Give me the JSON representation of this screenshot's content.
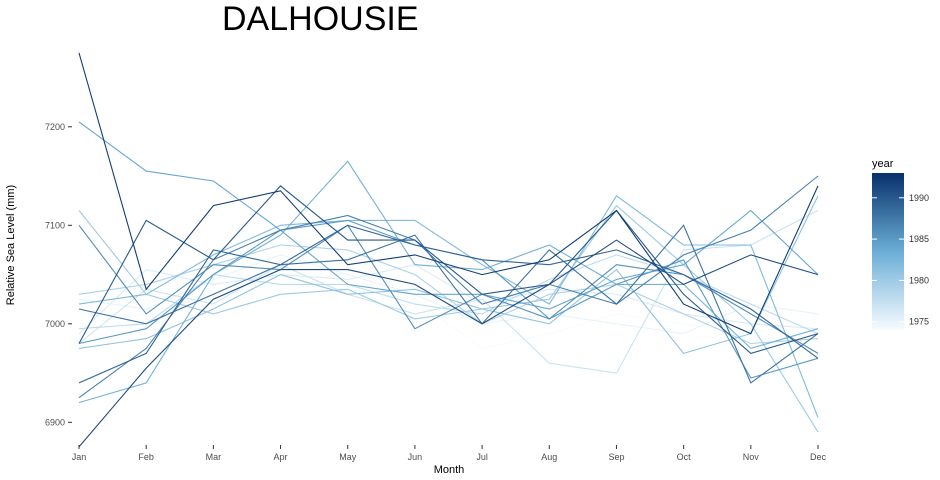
{
  "chart_data": {
    "type": "line",
    "title": "DALHOUSIE",
    "xlabel": "Month",
    "ylabel": "Relative Sea Level (mm)",
    "categories": [
      "Jan",
      "Feb",
      "Mar",
      "Apr",
      "May",
      "Jun",
      "Jul",
      "Aug",
      "Sep",
      "Oct",
      "Nov",
      "Dec"
    ],
    "ylim": [
      6880,
      7280
    ],
    "yticks": [
      6900,
      7000,
      7100,
      7200
    ],
    "grid": false,
    "legend": {
      "title": "year",
      "position": "right",
      "type": "colorbar",
      "range": [
        1974,
        1993
      ],
      "ticks": [
        1975,
        1980,
        1985,
        1990
      ],
      "color_low": "#f7fbff",
      "color_high": "#08306b"
    },
    "series": [
      {
        "year": 1974,
        "values": [
          7000,
          7010,
          7030,
          7040,
          7035,
          7025,
          6975,
          6990,
          7010,
          7000,
          6990,
          7005
        ]
      },
      {
        "year": 1975,
        "values": [
          7025,
          7015,
          7045,
          7070,
          7050,
          7030,
          7000,
          7010,
          7000,
          6990,
          7020,
          7010
        ]
      },
      {
        "year": 1976,
        "values": [
          6990,
          7055,
          7040,
          7050,
          7045,
          7060,
          7020,
          7035,
          7030,
          7010,
          7000,
          6995
        ]
      },
      {
        "year": 1977,
        "values": [
          6980,
          7035,
          7020,
          7060,
          7030,
          7010,
          7025,
          6960,
          6950,
          7075,
          7080,
          7115
        ]
      },
      {
        "year": 1978,
        "values": [
          6995,
          7000,
          7050,
          7040,
          7040,
          7020,
          7010,
          7045,
          7070,
          7050,
          7020,
          6990
        ]
      },
      {
        "year": 1979,
        "values": [
          7030,
          7040,
          7060,
          7080,
          7075,
          7050,
          7000,
          7030,
          7040,
          7010,
          6980,
          6985
        ]
      },
      {
        "year": 1980,
        "values": [
          7115,
          7030,
          7010,
          7030,
          7035,
          7005,
          7015,
          7025,
          7120,
          7060,
          7000,
          6890
        ]
      },
      {
        "year": 1981,
        "values": [
          6975,
          6985,
          7015,
          7050,
          7030,
          7035,
          7015,
          7000,
          7055,
          6970,
          6990,
          7130
        ]
      },
      {
        "year": 1982,
        "values": [
          7020,
          7030,
          7070,
          7100,
          7105,
          7105,
          7060,
          7020,
          7130,
          7080,
          7080,
          6905
        ]
      },
      {
        "year": 1983,
        "values": [
          6920,
          6940,
          7050,
          7090,
          7165,
          7060,
          7055,
          7080,
          7040,
          7040,
          6975,
          6995
        ]
      },
      {
        "year": 1984,
        "values": [
          7205,
          7155,
          7145,
          7095,
          7040,
          7030,
          7030,
          7015,
          7045,
          7060,
          7115,
          7050
        ]
      },
      {
        "year": 1985,
        "values": [
          6980,
          6995,
          7050,
          7095,
          7105,
          7080,
          7065,
          7005,
          7040,
          7065,
          6945,
          6965
        ]
      },
      {
        "year": 1986,
        "values": [
          7100,
          7010,
          7060,
          7055,
          7100,
          6995,
          7030,
          7005,
          7060,
          7050,
          7010,
          6970
        ]
      },
      {
        "year": 1987,
        "values": [
          6925,
          6975,
          7065,
          7095,
          7110,
          7085,
          7020,
          7040,
          7020,
          7070,
          7095,
          7150
        ]
      },
      {
        "year": 1988,
        "values": [
          7015,
          7000,
          7030,
          7060,
          7065,
          7090,
          7000,
          7075,
          7020,
          7100,
          6940,
          6990
        ]
      },
      {
        "year": 1989,
        "values": [
          6940,
          6970,
          7075,
          7060,
          7100,
          7080,
          7065,
          7060,
          7075,
          7050,
          7015,
          6965
        ]
      },
      {
        "year": 1990,
        "values": [
          6980,
          7105,
          7065,
          7140,
          7085,
          7085,
          7030,
          7040,
          7115,
          7030,
          6970,
          6990
        ]
      },
      {
        "year": 1991,
        "values": [
          6875,
          6955,
          7025,
          7055,
          7055,
          7040,
          7000,
          7040,
          7085,
          7040,
          7070,
          7050
        ]
      },
      {
        "year": 1992,
        "values": [
          7275,
          7035,
          7120,
          7135,
          7060,
          7070,
          7050,
          7065,
          7115,
          7020,
          6990,
          7140
        ]
      }
    ]
  }
}
